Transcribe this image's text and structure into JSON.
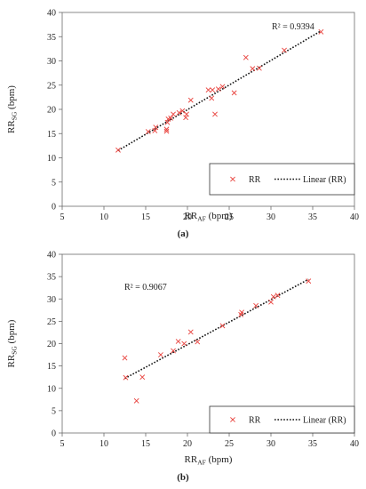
{
  "chart_data": [
    {
      "type": "scatter",
      "panel_label": "(a)",
      "ylabel_main": "RR",
      "ylabel_sub": "SG",
      "ylabel_unit": " (bpm)",
      "xlabel_main": "RR",
      "xlabel_sub": "AF",
      "xlabel_unit": " (bpm)",
      "xlim": [
        5,
        40
      ],
      "ylim": [
        0,
        40
      ],
      "xticks": [
        5,
        10,
        15,
        20,
        25,
        30,
        35,
        40
      ],
      "yticks": [
        0,
        5,
        10,
        15,
        20,
        25,
        30,
        35,
        40
      ],
      "annotation": "R² = 0.9394",
      "legend": {
        "placement": "bottom-right",
        "entries": [
          "RR",
          "Linear (RR)"
        ]
      },
      "marker_color": "#e8413c",
      "trendline": {
        "x": [
          11.7,
          36
        ],
        "y": [
          11.5,
          36.2
        ]
      },
      "points": [
        [
          11.7,
          11.6
        ],
        [
          15.3,
          15.4
        ],
        [
          16.1,
          15.6
        ],
        [
          16.2,
          16.3
        ],
        [
          17.5,
          15.5
        ],
        [
          17.5,
          15.9
        ],
        [
          17.6,
          17.3
        ],
        [
          17.7,
          18.0
        ],
        [
          18.0,
          18.2
        ],
        [
          18.3,
          19.0
        ],
        [
          19.0,
          19.3
        ],
        [
          19.4,
          19.7
        ],
        [
          19.8,
          18.3
        ],
        [
          19.9,
          19.0
        ],
        [
          20.4,
          21.9
        ],
        [
          22.5,
          24.0
        ],
        [
          22.9,
          22.3
        ],
        [
          23.0,
          24.0
        ],
        [
          23.3,
          19.0
        ],
        [
          23.7,
          24.2
        ],
        [
          24.2,
          24.7
        ],
        [
          25.6,
          23.4
        ],
        [
          27.0,
          30.7
        ],
        [
          27.8,
          28.4
        ],
        [
          28.6,
          28.5
        ],
        [
          31.6,
          32.2
        ],
        [
          36.0,
          36.0
        ]
      ]
    },
    {
      "type": "scatter",
      "panel_label": "(b)",
      "ylabel_main": "RR",
      "ylabel_sub": "SG",
      "ylabel_unit": " (bpm)",
      "xlabel_main": "RR",
      "xlabel_sub": "AF",
      "xlabel_unit": " (bpm)",
      "xlim": [
        5,
        40
      ],
      "ylim": [
        0,
        40
      ],
      "xticks": [
        5,
        10,
        15,
        20,
        25,
        30,
        35,
        40
      ],
      "yticks": [
        0,
        5,
        10,
        15,
        20,
        25,
        30,
        35,
        40
      ],
      "annotation": "R² = 0.9067",
      "legend": {
        "placement": "bottom-right",
        "entries": [
          "RR",
          "Linear (RR)"
        ]
      },
      "marker_color": "#e8413c",
      "trendline": {
        "x": [
          12.5,
          34.5
        ],
        "y": [
          12.2,
          34.4
        ]
      },
      "points": [
        [
          12.5,
          16.8
        ],
        [
          12.6,
          12.4
        ],
        [
          13.9,
          7.2
        ],
        [
          14.6,
          12.5
        ],
        [
          16.8,
          17.5
        ],
        [
          18.3,
          18.4
        ],
        [
          18.9,
          20.5
        ],
        [
          19.6,
          20.0
        ],
        [
          20.4,
          22.6
        ],
        [
          21.2,
          20.4
        ],
        [
          24.2,
          24.0
        ],
        [
          26.4,
          26.5
        ],
        [
          26.5,
          27.0
        ],
        [
          28.2,
          28.5
        ],
        [
          30.0,
          29.3
        ],
        [
          30.3,
          30.5
        ],
        [
          30.8,
          30.8
        ],
        [
          34.5,
          34.0
        ]
      ]
    }
  ]
}
